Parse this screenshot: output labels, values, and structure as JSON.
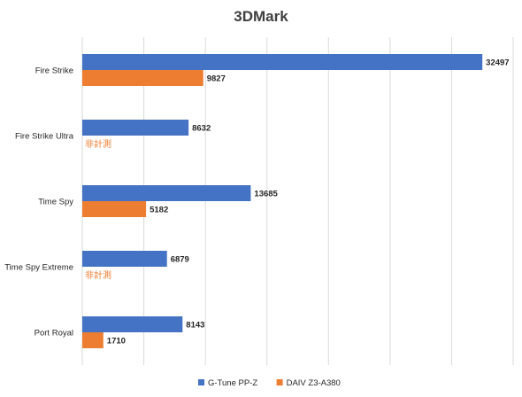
{
  "chart_data": {
    "type": "bar",
    "orientation": "horizontal",
    "title": "3DMark",
    "categories": [
      "Fire Strike",
      "Fire Strike Ultra",
      "Time Spy",
      "Time Spy Extreme",
      "Port Royal"
    ],
    "series": [
      {
        "name": "G-Tune PP-Z",
        "color": "#4472c4",
        "values": [
          32497,
          8632,
          13685,
          6879,
          8143
        ]
      },
      {
        "name": "DAIV Z3-A380",
        "color": "#ed7d31",
        "values": [
          9827,
          null,
          5182,
          null,
          1710
        ]
      }
    ],
    "not_measured_label": "非計測",
    "xlim": [
      0,
      35000
    ],
    "grid": true,
    "legend": "bottom"
  }
}
